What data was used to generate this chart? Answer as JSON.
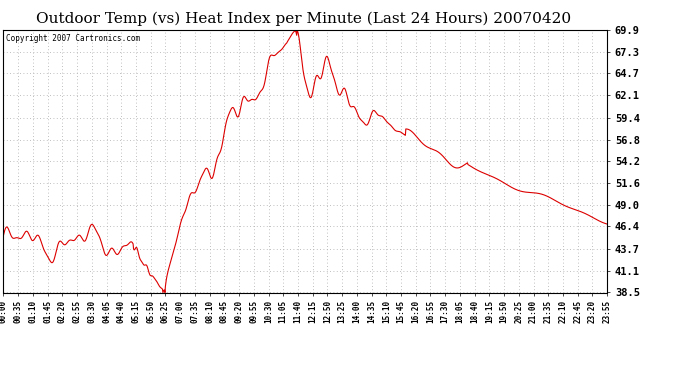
{
  "title": "Outdoor Temp (vs) Heat Index per Minute (Last 24 Hours) 20070420",
  "copyright_text": "Copyright 2007 Cartronics.com",
  "line_color": "#dd0000",
  "background_color": "#ffffff",
  "grid_color": "#aaaaaa",
  "title_fontsize": 11,
  "ylabel_values": [
    38.5,
    41.1,
    43.7,
    46.4,
    49.0,
    51.6,
    54.2,
    56.8,
    59.4,
    62.1,
    64.7,
    67.3,
    69.9
  ],
  "y_min": 38.5,
  "y_max": 69.9,
  "x_tick_labels": [
    "00:00",
    "00:35",
    "01:10",
    "01:45",
    "02:20",
    "02:55",
    "03:30",
    "04:05",
    "04:40",
    "05:15",
    "05:50",
    "06:25",
    "07:00",
    "07:35",
    "08:10",
    "08:45",
    "09:20",
    "09:55",
    "10:30",
    "11:05",
    "11:40",
    "12:15",
    "12:50",
    "13:25",
    "14:00",
    "14:35",
    "15:10",
    "15:45",
    "16:20",
    "16:55",
    "17:30",
    "18:05",
    "18:40",
    "19:15",
    "19:50",
    "20:25",
    "21:00",
    "21:35",
    "22:10",
    "22:45",
    "23:20",
    "23:55"
  ]
}
